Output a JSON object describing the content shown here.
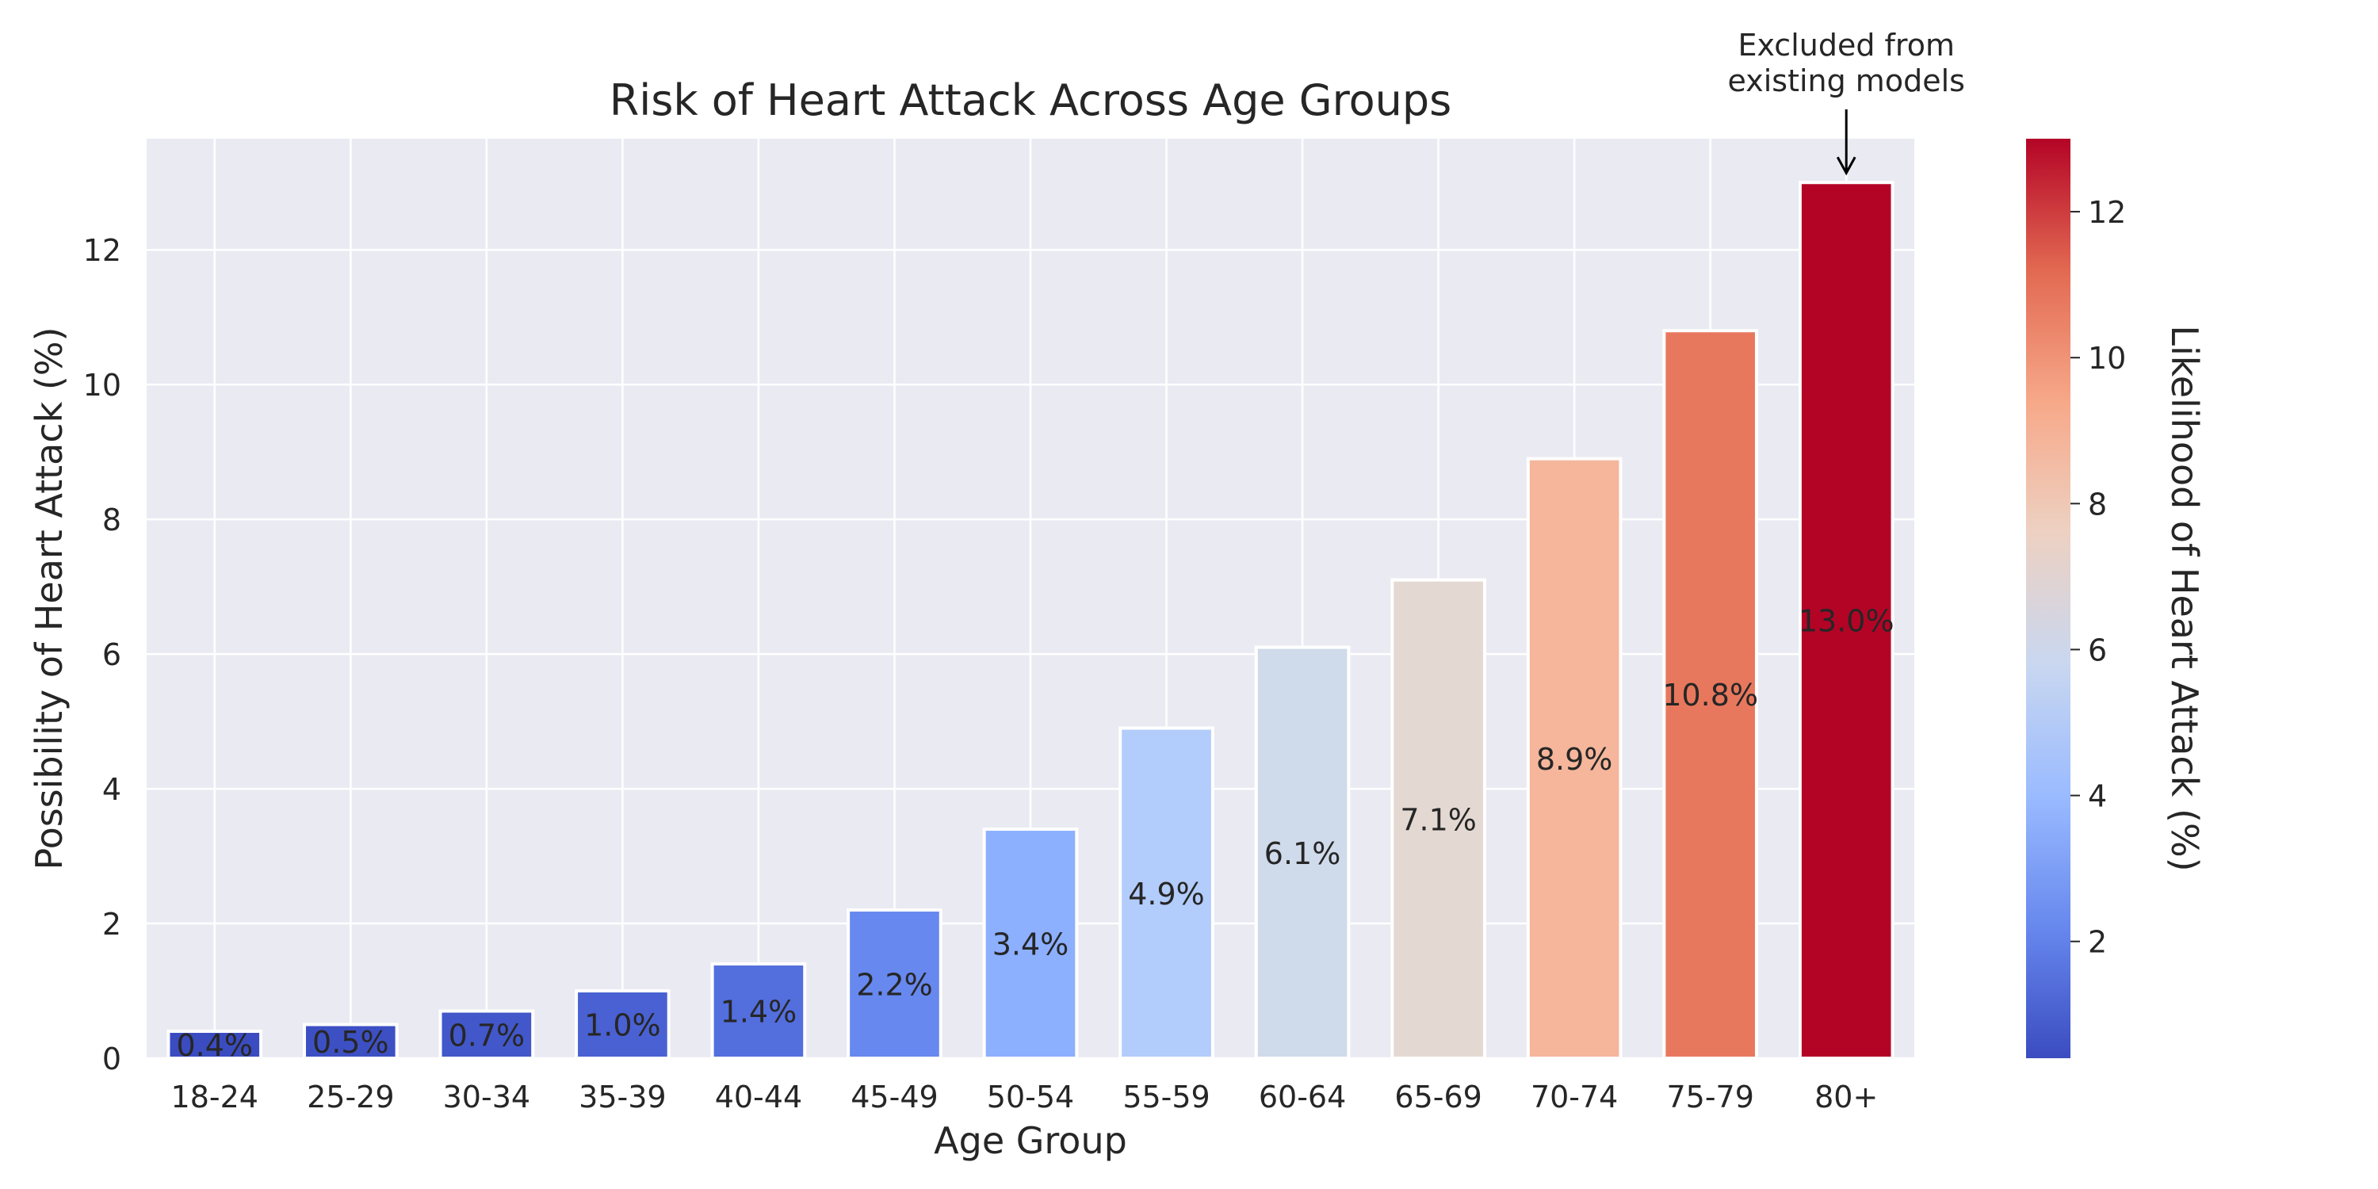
{
  "chart_data": {
    "type": "bar",
    "title": "Risk of Heart Attack Across Age Groups",
    "xlabel": "Age Group",
    "ylabel": "Possibility of Heart Attack (%)",
    "categories": [
      "18-24",
      "25-29",
      "30-34",
      "35-39",
      "40-44",
      "45-49",
      "50-54",
      "55-59",
      "60-64",
      "65-69",
      "70-74",
      "75-79",
      "80+"
    ],
    "values": [
      0.4,
      0.5,
      0.7,
      1.0,
      1.4,
      2.2,
      3.4,
      4.9,
      6.1,
      7.1,
      8.9,
      10.8,
      13.0
    ],
    "value_labels": [
      "0.4%",
      "0.5%",
      "0.7%",
      "1.0%",
      "1.4%",
      "2.2%",
      "3.4%",
      "4.9%",
      "6.1%",
      "7.1%",
      "8.9%",
      "10.8%",
      "13.0%"
    ],
    "ylim": [
      0,
      13.65
    ],
    "yticks": [
      0,
      2,
      4,
      6,
      8,
      10,
      12
    ],
    "grid": true,
    "colormap": "coolwarm",
    "bar_colors": [
      "#3b4cc0",
      "#3d50c3",
      "#4257c9",
      "#4961d2",
      "#536edd",
      "#6788ee",
      "#8caffe",
      "#b2ccfb",
      "#cfdaea",
      "#e4d9d2",
      "#f5b69b",
      "#e8785d",
      "#b40426"
    ],
    "colorbar": {
      "label": "Likelihood of Heart Attack (%)",
      "range": [
        0.4,
        13.0
      ],
      "ticks": [
        2,
        4,
        6,
        8,
        10,
        12
      ],
      "gradient": [
        "#3b4cc0",
        "#6788ee",
        "#9abbff",
        "#c9d7f0",
        "#edd1c2",
        "#f7a889",
        "#e26952",
        "#b40426"
      ]
    },
    "annotation": {
      "lines": [
        "Excluded from",
        "existing models"
      ],
      "target_category": "80+"
    },
    "colors": {
      "plot_background": "#eaeaf2",
      "grid": "#ffffff",
      "text": "#262626"
    }
  }
}
